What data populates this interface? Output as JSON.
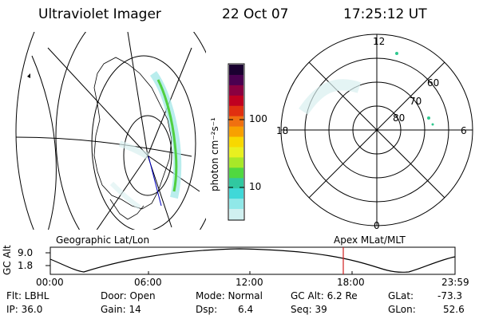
{
  "header": {
    "instrument": "Ultraviolet Imager",
    "date": "22 Oct 07",
    "time": "17:25:12 UT"
  },
  "colorbar": {
    "unit_label": "photon cm⁻²s⁻¹",
    "ticks": [
      "100",
      "10"
    ],
    "colors": [
      "#1a0030",
      "#4a0050",
      "#8a0040",
      "#c00020",
      "#e03010",
      "#f07010",
      "#f8a000",
      "#f8d800",
      "#e8f020",
      "#a8e828",
      "#50d840",
      "#30c8a0",
      "#40d8d8",
      "#90e8e8",
      "#d0f0f0"
    ]
  },
  "polar_plot": {
    "mlt_labels": [
      "12",
      "18",
      "6",
      "0"
    ],
    "lat_labels": [
      "60",
      "70",
      "80"
    ]
  },
  "panel_labels": {
    "left": "Geographic Lat/Lon",
    "right": "Apex MLat/MLT"
  },
  "timeline": {
    "ylabel": "GC Alt",
    "y_ticks": [
      "9.0",
      "1.8"
    ],
    "x_ticks": [
      "00:00",
      "06:00",
      "12:00",
      "18:00",
      "23:59"
    ],
    "marker_color": "#d02020"
  },
  "footer": {
    "flt": "Flt: LBHL",
    "ip": "IP: 36.0",
    "door": "Door: Open",
    "gain": "Gain: 14",
    "mode": "Mode: Normal",
    "dsp_label": "Dsp:",
    "dsp_value": "6.4",
    "gc_alt": "GC Alt: 6.2 Re",
    "seq": "Seq: 39",
    "glat_label": "GLat:",
    "glat_value": "-73.3",
    "glon_label": "GLon:",
    "glon_value": "52.6"
  }
}
